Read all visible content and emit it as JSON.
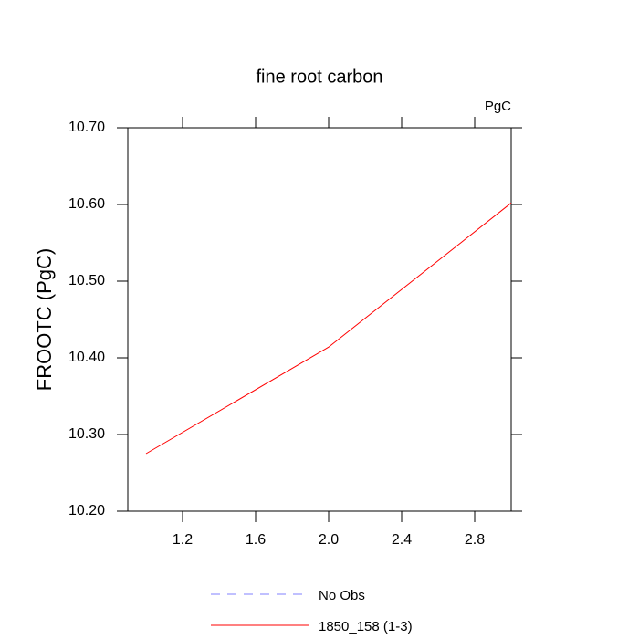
{
  "chart_data": {
    "type": "line",
    "title": "fine root carbon",
    "annotation": "PgC",
    "ylabel": "FROOTC  (PgC)",
    "x": [
      1,
      2,
      3
    ],
    "series": [
      {
        "name": "No Obs",
        "color": "#8080ff",
        "dashed": true,
        "values": [
          null,
          null,
          null
        ]
      },
      {
        "name": "1850_158 (1-3)",
        "color": "#ff0000",
        "dashed": false,
        "values": [
          10.275,
          10.414,
          10.602
        ]
      }
    ],
    "xlim": [
      0.9,
      3.0
    ],
    "xticks": [
      1.2,
      1.6,
      {
        "value": 2,
        "label": "2.0"
      },
      2.4,
      2.8
    ],
    "ylim": [
      10.2,
      10.7
    ],
    "yticks": [
      {
        "value": 10.2,
        "label": "10.20"
      },
      {
        "value": 10.3,
        "label": "10.30"
      },
      {
        "value": 10.4,
        "label": "10.40"
      },
      {
        "value": 10.5,
        "label": "10.50"
      },
      {
        "value": 10.6,
        "label": "10.60"
      },
      {
        "value": 10.7,
        "label": "10.70"
      }
    ]
  }
}
